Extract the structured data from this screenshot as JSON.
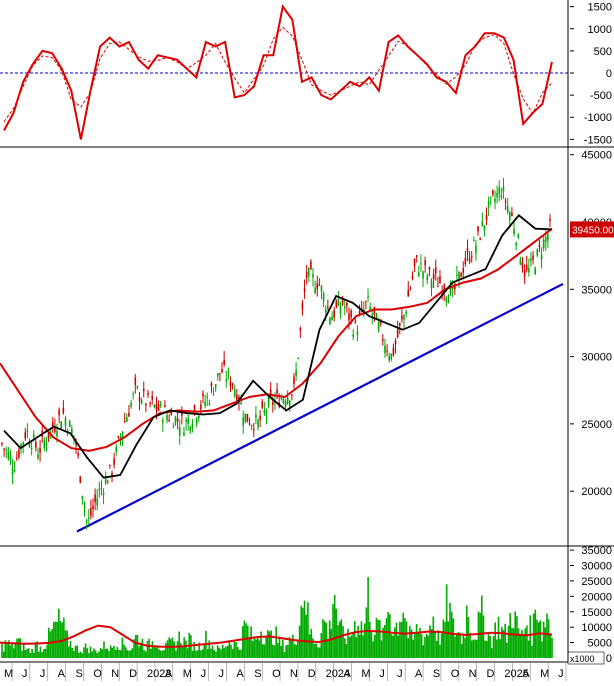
{
  "chart_data": {
    "type": "line",
    "colors": {
      "price_up": "#00aa00",
      "price_down": "#cc0000",
      "ma_short": "#000000",
      "ma_long": "#dd0000",
      "trendline": "#0000cc",
      "volume": "#00aa00",
      "volume_ma": "#dd0000",
      "osc": "#dd0000",
      "zero_line": "#0000cc",
      "current_price_bg": "#cc0000"
    },
    "x_axis": {
      "labels": [
        "M",
        "J",
        "J",
        "A",
        "S",
        "O",
        "N",
        "D",
        "2023",
        "A",
        "M",
        "J",
        "J",
        "A",
        "S",
        "O",
        "N",
        "D",
        "2024",
        "A",
        "M",
        "J",
        "J",
        "A",
        "S",
        "O",
        "N",
        "D",
        "2025",
        "A",
        "M",
        "J"
      ]
    },
    "oscillator": {
      "ylim": [
        -1650,
        1650
      ],
      "ticks": [
        1500,
        1000,
        500,
        0,
        -500,
        -1000,
        -1500
      ],
      "values": [
        -1300,
        -900,
        -200,
        200,
        500,
        450,
        100,
        -400,
        -1500,
        -400,
        600,
        800,
        600,
        700,
        300,
        100,
        400,
        350,
        300,
        100,
        -100,
        700,
        600,
        700,
        -550,
        -500,
        -300,
        400,
        400,
        1500,
        1200,
        -200,
        -100,
        -500,
        -600,
        -400,
        -200,
        -300,
        -100,
        -400,
        700,
        850,
        600,
        400,
        200,
        -100,
        -200,
        -450,
        400,
        600,
        900,
        900,
        800,
        300,
        -1150,
        -900,
        -700,
        250
      ]
    },
    "price": {
      "ylim": [
        16000,
        45500
      ],
      "ticks": [
        45000,
        40000,
        35000,
        30000,
        25000,
        20000
      ],
      "current_label": "39450.00",
      "close": [
        23500,
        22000,
        24500,
        23000,
        24500,
        25800,
        24000,
        17500,
        20000,
        21500,
        25000,
        27500,
        26500,
        26000,
        25500,
        25000,
        26000,
        27000,
        29000,
        28000,
        25500,
        25000,
        26500,
        27000,
        27500,
        36000,
        35500,
        33000,
        34000,
        32000,
        34000,
        32000,
        30000,
        33000,
        37000,
        36000,
        35500,
        34500,
        37000,
        38500,
        41000,
        42500,
        40000,
        36000,
        37500,
        39450
      ],
      "ma_short": [
        24500,
        23200,
        24000,
        24800,
        24300,
        22500,
        21000,
        21200,
        23500,
        25500,
        26000,
        25800,
        25700,
        25800,
        26500,
        28200,
        27000,
        26000,
        26800,
        32000,
        34500,
        34000,
        33000,
        32500,
        32000,
        32500,
        34000,
        35500,
        36000,
        36500,
        39000,
        40500,
        39500,
        39450
      ],
      "ma_long": [
        29500,
        27500,
        25500,
        24000,
        23200,
        23000,
        23300,
        24000,
        25000,
        25800,
        26000,
        25900,
        26000,
        26500,
        27000,
        27200,
        27000,
        28000,
        29500,
        31500,
        33000,
        33500,
        33500,
        33700,
        34000,
        35000,
        35500,
        35800,
        36500,
        37500,
        38500,
        39500
      ]
    },
    "volume": {
      "ylim": [
        0,
        36000
      ],
      "ticks": [
        35000,
        30000,
        25000,
        20000,
        15000,
        10000,
        5000,
        0
      ],
      "unit": "x1000",
      "bars": [
        4000,
        5500,
        3800,
        6200,
        4500,
        3000,
        2500,
        5000,
        3200,
        6000,
        9000,
        12000,
        13000,
        7000,
        5000,
        3500,
        2800,
        4000,
        3000,
        2500,
        3500,
        4800,
        3200,
        6000,
        5200,
        4500,
        3000,
        7500,
        6500,
        4200,
        5000,
        6800,
        4000,
        3600,
        5500,
        4800,
        8000,
        5200,
        6400,
        3800,
        4500,
        7200,
        5600,
        3400,
        3000,
        4600,
        6300,
        5000,
        3800,
        12000,
        8500,
        6000,
        10500,
        9200,
        7000,
        8800,
        5400,
        4200,
        6500,
        5900,
        12500,
        28000,
        9500,
        7200,
        5200,
        14000,
        8000,
        26500,
        10200,
        8500,
        6800,
        11500,
        14000,
        9000,
        24000,
        8200,
        11800,
        7000,
        20000,
        9800,
        13000,
        19500,
        8400,
        6500,
        11200,
        7500,
        9000,
        15500,
        7200,
        8600,
        21000,
        10500,
        9400,
        6800,
        19000,
        7500,
        11000,
        16000,
        8200,
        6400,
        12800,
        9500,
        8000,
        19000,
        10500,
        7600,
        13600,
        8200,
        22000,
        9000,
        17000,
        7500
      ],
      "ma": [
        5000,
        4800,
        4600,
        4700,
        4900,
        5500,
        7000,
        9000,
        10500,
        10000,
        7500,
        5000,
        4000,
        3700,
        3600,
        3800,
        4200,
        4600,
        5000,
        5600,
        6200,
        6800,
        7000,
        6400,
        5800,
        5400,
        5200,
        6000,
        7400,
        8400,
        8800,
        8600,
        8200,
        7900,
        8200,
        8600,
        8400,
        7800,
        7500,
        7800,
        8200,
        8000,
        7600,
        7400,
        8000,
        7600
      ]
    }
  }
}
